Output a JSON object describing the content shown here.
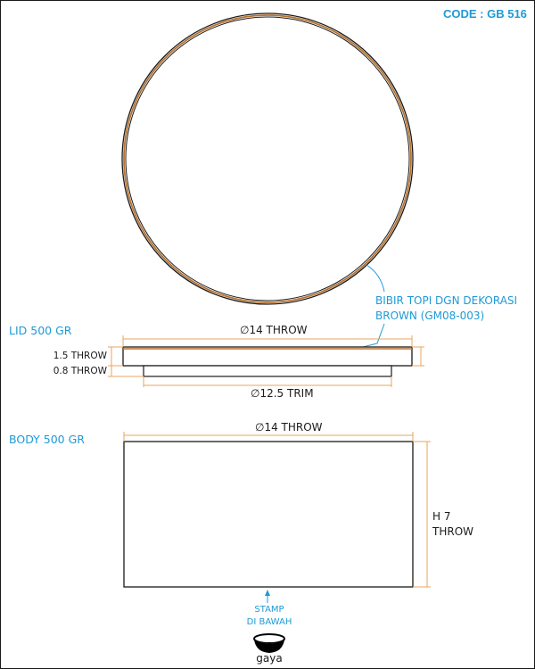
{
  "code_label": "CODE : GB 516",
  "top_view": {
    "note_line1": "BIBIR TOPI DGN DEKORASI",
    "note_line2": "BROWN (GM08-003)"
  },
  "lid": {
    "title": "LID 500 GR",
    "diameter_label": "∅14 THROW",
    "thickness_label": "1.5 THROW",
    "rim_thickness_label": "0.8 THROW",
    "trim_diameter_label": "∅12.5 TRIM"
  },
  "body": {
    "title": "BODY 500 GR",
    "diameter_label": "∅14 THROW",
    "height_label_line1": "H 7",
    "height_label_line2": "THROW"
  },
  "stamp": {
    "line1": "STAMP",
    "line2": "DI BAWAH"
  },
  "logo": {
    "brand": "gaya",
    "icon": "bowl-logo-icon"
  },
  "colors": {
    "accent_blue": "#1e9ad6",
    "dimension_orange": "#e8a55c",
    "decoration_brown": "#b8732f",
    "line": "#1a1a1a"
  }
}
